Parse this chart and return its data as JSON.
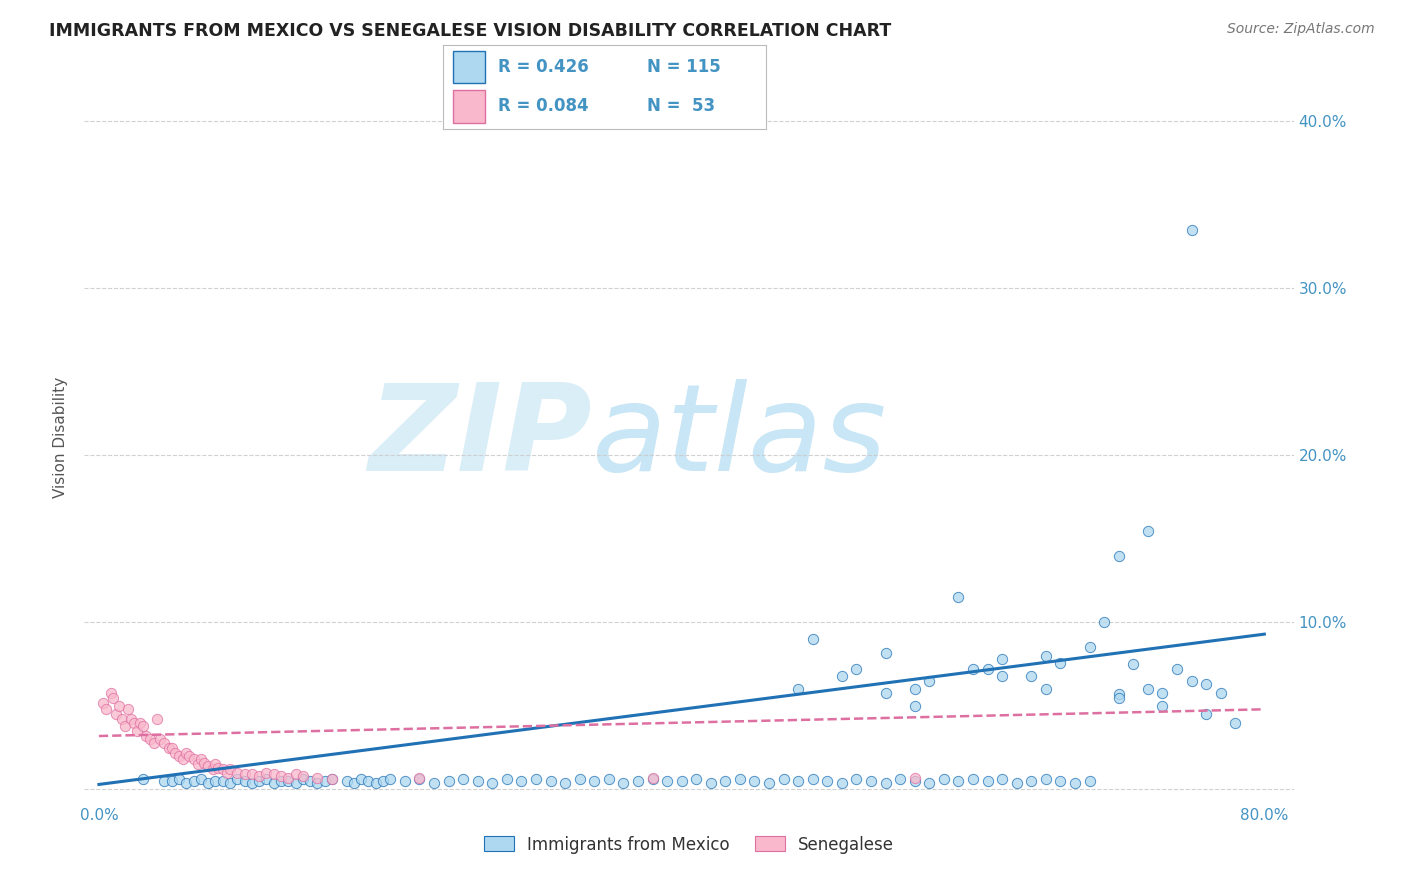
{
  "title": "IMMIGRANTS FROM MEXICO VS SENEGALESE VISION DISABILITY CORRELATION CHART",
  "source": "Source: ZipAtlas.com",
  "ylabel": "Vision Disability",
  "watermark_zip": "ZIP",
  "watermark_atlas": "atlas",
  "legend_r1": "R = 0.426",
  "legend_n1": "N = 115",
  "legend_r2": "R = 0.084",
  "legend_n2": "N =  53",
  "legend_label1": "Immigrants from Mexico",
  "legend_label2": "Senegalese",
  "xlim": [
    -0.01,
    0.82
  ],
  "ylim": [
    -0.008,
    0.43
  ],
  "xticks": [
    0.0,
    0.1,
    0.2,
    0.3,
    0.4,
    0.5,
    0.6,
    0.7,
    0.8
  ],
  "xticklabels": [
    "0.0%",
    "",
    "",
    "",
    "",
    "",
    "",
    "",
    "80.0%"
  ],
  "yticks": [
    0.0,
    0.1,
    0.2,
    0.3,
    0.4
  ],
  "yticklabels_left": [
    "",
    "",
    "",
    "",
    ""
  ],
  "yticklabels_right": [
    "",
    "10.0%",
    "20.0%",
    "30.0%",
    "40.0%"
  ],
  "blue_color": "#add8f0",
  "pink_color": "#f9b8cb",
  "line_blue": "#2171b5",
  "line_pink": "#de6fa1",
  "title_color": "#222222",
  "tick_color": "#4393c3",
  "watermark_color": "#daeef8",
  "blue_scatter_x": [
    0.03,
    0.045,
    0.05,
    0.055,
    0.06,
    0.065,
    0.07,
    0.075,
    0.08,
    0.085,
    0.09,
    0.095,
    0.1,
    0.105,
    0.11,
    0.115,
    0.12,
    0.125,
    0.13,
    0.135,
    0.14,
    0.145,
    0.15,
    0.155,
    0.16,
    0.17,
    0.175,
    0.18,
    0.185,
    0.19,
    0.195,
    0.2,
    0.21,
    0.22,
    0.23,
    0.24,
    0.25,
    0.26,
    0.27,
    0.28,
    0.29,
    0.3,
    0.31,
    0.32,
    0.33,
    0.34,
    0.35,
    0.36,
    0.37,
    0.38,
    0.39,
    0.4,
    0.41,
    0.42,
    0.43,
    0.44,
    0.45,
    0.46,
    0.47,
    0.48,
    0.49,
    0.5,
    0.51,
    0.52,
    0.53,
    0.54,
    0.55,
    0.56,
    0.57,
    0.58,
    0.59,
    0.6,
    0.61,
    0.62,
    0.63,
    0.64,
    0.65,
    0.66,
    0.67,
    0.68,
    0.49,
    0.52,
    0.54,
    0.56,
    0.57,
    0.59,
    0.61,
    0.62,
    0.64,
    0.65,
    0.66,
    0.68,
    0.7,
    0.71,
    0.72,
    0.73,
    0.74,
    0.75,
    0.76,
    0.77,
    0.78,
    0.69,
    0.7,
    0.72,
    0.75,
    0.48,
    0.51,
    0.54,
    0.56,
    0.6,
    0.62,
    0.65,
    0.7,
    0.73,
    0.76
  ],
  "blue_scatter_y": [
    0.006,
    0.005,
    0.005,
    0.006,
    0.004,
    0.005,
    0.006,
    0.004,
    0.005,
    0.005,
    0.004,
    0.006,
    0.005,
    0.004,
    0.005,
    0.006,
    0.004,
    0.005,
    0.005,
    0.004,
    0.006,
    0.005,
    0.004,
    0.005,
    0.006,
    0.005,
    0.004,
    0.006,
    0.005,
    0.004,
    0.005,
    0.006,
    0.005,
    0.006,
    0.004,
    0.005,
    0.006,
    0.005,
    0.004,
    0.006,
    0.005,
    0.006,
    0.005,
    0.004,
    0.006,
    0.005,
    0.006,
    0.004,
    0.005,
    0.006,
    0.005,
    0.005,
    0.006,
    0.004,
    0.005,
    0.006,
    0.005,
    0.004,
    0.006,
    0.005,
    0.006,
    0.005,
    0.004,
    0.006,
    0.005,
    0.004,
    0.006,
    0.005,
    0.004,
    0.006,
    0.005,
    0.006,
    0.005,
    0.006,
    0.004,
    0.005,
    0.006,
    0.005,
    0.004,
    0.005,
    0.09,
    0.072,
    0.082,
    0.06,
    0.065,
    0.115,
    0.072,
    0.078,
    0.068,
    0.08,
    0.076,
    0.085,
    0.057,
    0.075,
    0.06,
    0.058,
    0.072,
    0.065,
    0.063,
    0.058,
    0.04,
    0.1,
    0.14,
    0.155,
    0.335,
    0.06,
    0.068,
    0.058,
    0.05,
    0.072,
    0.068,
    0.06,
    0.055,
    0.05,
    0.045
  ],
  "pink_scatter_x": [
    0.003,
    0.005,
    0.008,
    0.01,
    0.012,
    0.014,
    0.016,
    0.018,
    0.02,
    0.022,
    0.024,
    0.026,
    0.028,
    0.03,
    0.032,
    0.035,
    0.038,
    0.04,
    0.042,
    0.045,
    0.048,
    0.05,
    0.052,
    0.055,
    0.058,
    0.06,
    0.062,
    0.065,
    0.068,
    0.07,
    0.072,
    0.075,
    0.078,
    0.08,
    0.082,
    0.085,
    0.088,
    0.09,
    0.095,
    0.1,
    0.105,
    0.11,
    0.115,
    0.12,
    0.125,
    0.13,
    0.135,
    0.14,
    0.15,
    0.16,
    0.22,
    0.38,
    0.56
  ],
  "pink_scatter_y": [
    0.052,
    0.048,
    0.058,
    0.055,
    0.045,
    0.05,
    0.042,
    0.038,
    0.048,
    0.042,
    0.04,
    0.035,
    0.04,
    0.038,
    0.032,
    0.03,
    0.028,
    0.042,
    0.03,
    0.028,
    0.025,
    0.025,
    0.022,
    0.02,
    0.018,
    0.022,
    0.02,
    0.018,
    0.015,
    0.018,
    0.016,
    0.014,
    0.012,
    0.015,
    0.013,
    0.012,
    0.01,
    0.012,
    0.01,
    0.009,
    0.009,
    0.008,
    0.01,
    0.009,
    0.008,
    0.007,
    0.009,
    0.008,
    0.007,
    0.006,
    0.007,
    0.007,
    0.007
  ],
  "blue_trend_x": [
    0.0,
    0.8
  ],
  "blue_trend_y": [
    0.003,
    0.093
  ],
  "pink_trend_x": [
    0.0,
    0.8
  ],
  "pink_trend_y": [
    0.032,
    0.048
  ]
}
